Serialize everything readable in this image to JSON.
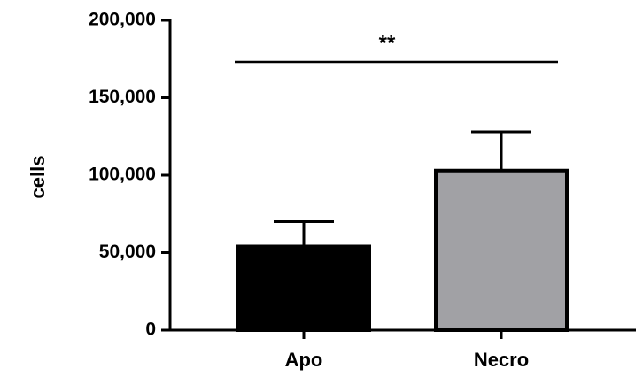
{
  "chart_data": {
    "type": "bar",
    "y_label": "cells",
    "categories": [
      "Apo",
      "Necro"
    ],
    "series": [
      {
        "values": [
          54000,
          103000
        ],
        "errors": [
          16000,
          25000
        ],
        "colors": [
          "#000000",
          "#a1a1a5"
        ]
      }
    ],
    "ylim": [
      0,
      200000
    ],
    "yticks": [
      0,
      {
        "value": 50000,
        "label": "50,000"
      },
      {
        "value": 100000,
        "label": "100,000"
      },
      {
        "value": 150000,
        "label": "150,000"
      },
      {
        "value": 200000,
        "label": "200,000"
      }
    ],
    "annotation": "**"
  }
}
